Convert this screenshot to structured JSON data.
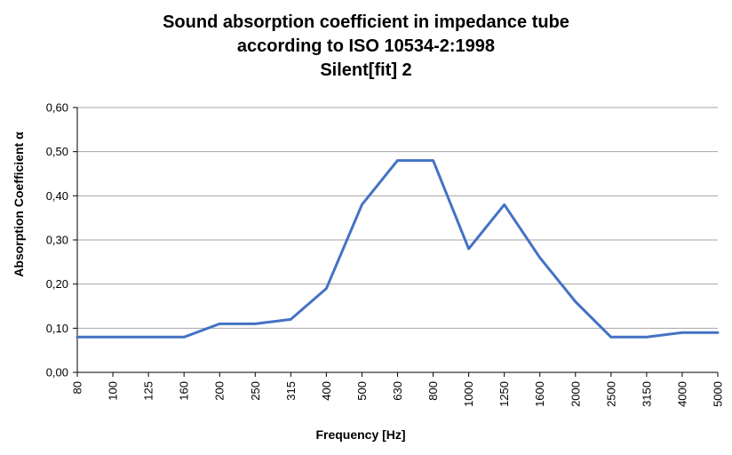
{
  "chart_data": {
    "type": "line",
    "title_lines": [
      "Sound absorption coefficient in impedance tube",
      "according to ISO 10534-2:1998",
      "Silent[fit] 2"
    ],
    "xlabel": "Frequency [Hz]",
    "ylabel": "Absorption Coefficient α",
    "categories": [
      "80",
      "100",
      "125",
      "160",
      "200",
      "250",
      "315",
      "400",
      "500",
      "630",
      "800",
      "1000",
      "1250",
      "1600",
      "2000",
      "2500",
      "3150",
      "4000",
      "5000"
    ],
    "series": [
      {
        "values": [
          0.08,
          0.08,
          0.08,
          0.08,
          0.11,
          0.11,
          0.12,
          0.19,
          0.38,
          0.48,
          0.48,
          0.28,
          0.38,
          0.26,
          0.16,
          0.08,
          0.08,
          0.09,
          0.09
        ]
      }
    ],
    "ylim": [
      0,
      0.6
    ],
    "yticks": [
      0,
      0.1,
      0.2,
      0.3,
      0.4,
      0.5,
      0.6
    ],
    "ytick_labels": [
      "0,00",
      "0,10",
      "0,20",
      "0,30",
      "0,40",
      "0,50",
      "0,60"
    ],
    "grid": true,
    "line_color": "#4472c4",
    "grid_color": "#a6a6a6"
  }
}
